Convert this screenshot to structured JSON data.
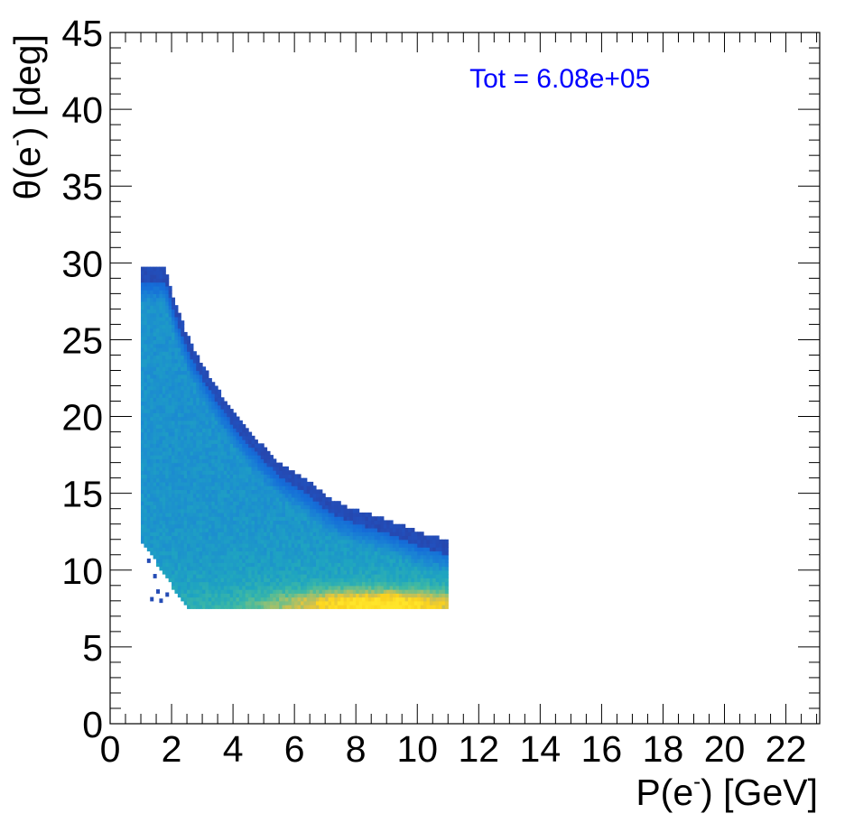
{
  "chart_data": {
    "type": "heatmap",
    "title": "",
    "xlabel": {
      "base": "P(e",
      "sup": "-",
      "tail": ") [GeV]"
    },
    "ylabel": {
      "base": "θ(e",
      "sup": "-",
      "tail": ") [deg]"
    },
    "xlim": [
      0,
      23.1
    ],
    "ylim": [
      0,
      45
    ],
    "x_ticks": [
      "0",
      "2",
      "4",
      "6",
      "8",
      "10",
      "12",
      "14",
      "16",
      "18",
      "20",
      "22"
    ],
    "y_ticks": [
      "0",
      "5",
      "10",
      "15",
      "20",
      "25",
      "30",
      "35",
      "40",
      "45"
    ],
    "grid": false,
    "annotation": {
      "text": "Tot = 6.08e+05",
      "x": 11.7,
      "y": 42,
      "color": "#0000ff"
    },
    "colormap": [
      "#2a3d9e",
      "#1f58c9",
      "#156cd8",
      "#1b87d3",
      "#1fa5c0",
      "#3fb9a3",
      "#8cc078",
      "#d6c14a",
      "#fbd31f",
      "#ffe52a"
    ],
    "region": {
      "x_min": 1.0,
      "x_max": 11.0,
      "y_min": 7.5,
      "y_max": 29.6,
      "upper_edge": [
        [
          1.0,
          29.6
        ],
        [
          1.8,
          29.6
        ],
        [
          2.0,
          28.0
        ],
        [
          2.5,
          25.2
        ],
        [
          3.0,
          23.3
        ],
        [
          3.5,
          21.7
        ],
        [
          4.0,
          20.2
        ],
        [
          4.5,
          19.0
        ],
        [
          5.0,
          17.9
        ],
        [
          5.5,
          16.9
        ],
        [
          6.0,
          16.3
        ],
        [
          6.5,
          15.6
        ],
        [
          7.0,
          14.8
        ],
        [
          7.5,
          14.2
        ],
        [
          8.0,
          13.8
        ],
        [
          8.5,
          13.5
        ],
        [
          9.0,
          13.2
        ],
        [
          9.5,
          12.8
        ],
        [
          10.0,
          12.4
        ],
        [
          10.5,
          12.1
        ],
        [
          11.0,
          11.8
        ]
      ],
      "lower_edge": [
        [
          1.0,
          12.0
        ],
        [
          1.5,
          10.5
        ],
        [
          2.0,
          9.0
        ],
        [
          2.3,
          8.2
        ],
        [
          2.6,
          7.5
        ],
        [
          11.0,
          7.5
        ]
      ],
      "peak": {
        "x": 8.7,
        "y": 7.8
      },
      "isolated_points": [
        [
          1.2,
          10.5
        ],
        [
          1.4,
          9.5
        ],
        [
          1.5,
          8.5
        ],
        [
          1.3,
          8.0
        ],
        [
          1.6,
          7.9
        ],
        [
          1.8,
          8.3
        ]
      ]
    }
  }
}
